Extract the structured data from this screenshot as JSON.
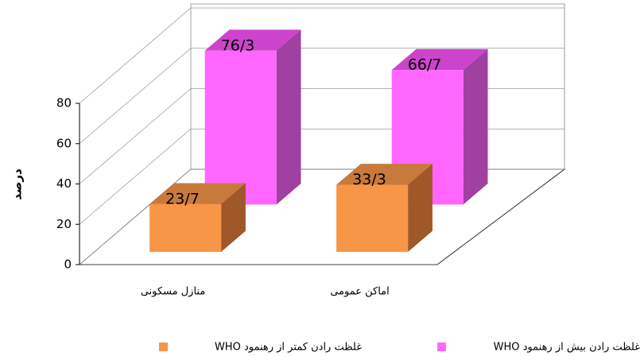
{
  "chart_data": {
    "type": "bar3d",
    "y_label": "درصد",
    "categories": [
      "منازل مسکونی",
      "اماکن عمومی"
    ],
    "series": [
      {
        "name": "غلظت رادن کمتر از رهنمود WHO",
        "color": "#f79646",
        "values": [
          23.7,
          33.3
        ],
        "value_labels": [
          "23/7",
          "33/3"
        ]
      },
      {
        "name": "غلظت رادن بیش از رهنمود WHO",
        "color": "#ff66ff",
        "values": [
          76.3,
          66.7
        ],
        "value_labels": [
          "76/3",
          "66/7"
        ]
      }
    ],
    "ylim": [
      0,
      80
    ],
    "yticks": [
      0,
      20,
      40,
      60,
      80
    ],
    "grid": true
  }
}
